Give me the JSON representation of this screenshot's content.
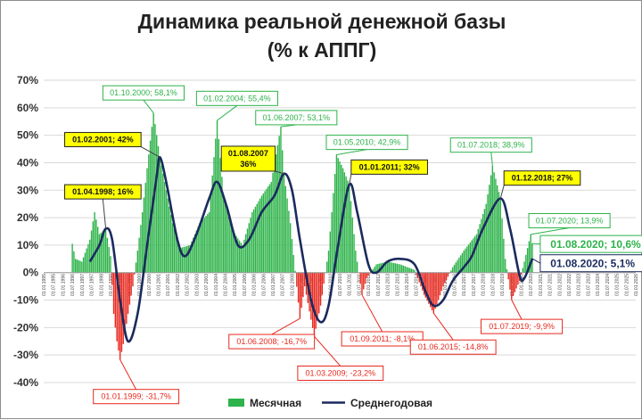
{
  "chart_data": {
    "type": "bar",
    "title": "Динамика реальной денежной базы",
    "subtitle": "(% к АППГ)",
    "xlabel": "",
    "ylabel": "",
    "ylim": [
      -40,
      70
    ],
    "yticks": [
      70,
      60,
      50,
      40,
      30,
      20,
      10,
      0,
      -10,
      -20,
      -30,
      -40
    ],
    "ytick_labels": [
      "70%",
      "60%",
      "50%",
      "40%",
      "30%",
      "20%",
      "10%",
      "0%",
      "-10%",
      "-20%",
      "-30%",
      "-40%"
    ],
    "x_start": "1995-01",
    "x_end": "2026-01",
    "xtick_labels": [
      "01.01.1995",
      "01.07.1995",
      "01.01.1996",
      "01.07.1996",
      "01.01.1997",
      "01.07.1997",
      "01.01.1998",
      "01.07.1998",
      "01.01.1999",
      "01.07.1999",
      "01.01.2000",
      "01.07.2000",
      "01.01.2001",
      "01.07.2001",
      "01.01.2002",
      "01.07.2002",
      "01.01.2003",
      "01.07.2003",
      "01.01.2004",
      "01.07.2004",
      "01.01.2005",
      "01.07.2005",
      "01.01.2006",
      "01.07.2006",
      "01.01.2007",
      "01.07.2007",
      "01.01.2008",
      "01.07.2008",
      "01.01.2009",
      "01.07.2009",
      "01.01.2010",
      "01.07.2010",
      "01.01.2011",
      "01.07.2011",
      "01.01.2012",
      "01.07.2012",
      "01.01.2013",
      "01.07.2013",
      "01.01.2014",
      "01.07.2014",
      "01.01.2015",
      "01.07.2015",
      "01.01.2016",
      "01.07.2016",
      "01.01.2017",
      "01.07.2017",
      "01.01.2018",
      "01.07.2018",
      "01.01.2019",
      "01.07.2019",
      "01.01.2020",
      "01.07.2020",
      "01.01.2021",
      "01.07.2021",
      "01.01.2022",
      "01.07.2022",
      "01.01.2023",
      "01.07.2023",
      "01.01.2024",
      "01.07.2024",
      "01.01.2025",
      "01.07.2025",
      "01.01.2026"
    ],
    "grid": true,
    "legend_position": "bottom",
    "series": [
      {
        "name": "Месячная",
        "type": "bar",
        "color": "#2db34a",
        "negative_color": "#e8281e",
        "keypoints": [
          [
            "1996-06",
            0
          ],
          [
            "1996-07",
            10.5
          ],
          [
            "1996-09",
            5
          ],
          [
            "1997-01",
            4
          ],
          [
            "1997-06",
            12
          ],
          [
            "1997-09",
            22
          ],
          [
            "1997-12",
            14
          ],
          [
            "1998-04",
            16
          ],
          [
            "1998-07",
            6
          ],
          [
            "1998-09",
            -15
          ],
          [
            "1998-11",
            -25
          ],
          [
            "1999-01",
            -31.7
          ],
          [
            "1999-03",
            -26
          ],
          [
            "1999-06",
            -15
          ],
          [
            "1999-09",
            -5
          ],
          [
            "1999-12",
            8
          ],
          [
            "2000-03",
            22
          ],
          [
            "2000-06",
            38
          ],
          [
            "2000-10",
            58.1
          ],
          [
            "2001-02",
            42
          ],
          [
            "2001-06",
            30
          ],
          [
            "2001-10",
            18
          ],
          [
            "2002-03",
            9
          ],
          [
            "2002-09",
            10
          ],
          [
            "2003-03",
            18
          ],
          [
            "2003-09",
            22
          ],
          [
            "2004-02",
            55.4
          ],
          [
            "2004-06",
            28
          ],
          [
            "2004-12",
            15
          ],
          [
            "2005-06",
            10
          ],
          [
            "2005-12",
            22
          ],
          [
            "2006-06",
            28
          ],
          [
            "2006-12",
            33
          ],
          [
            "2007-06",
            53.1
          ],
          [
            "2007-08",
            36
          ],
          [
            "2007-12",
            18
          ],
          [
            "2008-06",
            -16.7
          ],
          [
            "2008-09",
            -5
          ],
          [
            "2009-03",
            -23.2
          ],
          [
            "2009-07",
            -12
          ],
          [
            "2009-12",
            8
          ],
          [
            "2010-05",
            42.9
          ],
          [
            "2010-09",
            38
          ],
          [
            "2011-01",
            32
          ],
          [
            "2011-05",
            8
          ],
          [
            "2011-09",
            -8.1
          ],
          [
            "2011-12",
            -2
          ],
          [
            "2012-06",
            3
          ],
          [
            "2013-01",
            4
          ],
          [
            "2013-09",
            3
          ],
          [
            "2014-06",
            1
          ],
          [
            "2014-12",
            -8
          ],
          [
            "2015-06",
            -14.8
          ],
          [
            "2015-12",
            -5
          ],
          [
            "2016-06",
            2
          ],
          [
            "2017-01",
            8
          ],
          [
            "2017-09",
            14
          ],
          [
            "2018-03",
            25
          ],
          [
            "2018-07",
            38.9
          ],
          [
            "2018-12",
            27
          ],
          [
            "2019-03",
            5
          ],
          [
            "2019-07",
            -9.9
          ],
          [
            "2019-12",
            -3
          ],
          [
            "2020-03",
            4
          ],
          [
            "2020-07",
            13.9
          ],
          [
            "2020-08",
            10.6
          ]
        ]
      },
      {
        "name": "Среднегодовая",
        "type": "line",
        "color": "#1b2a5e",
        "keypoints": [
          [
            "1997-06",
            4
          ],
          [
            "1997-12",
            10
          ],
          [
            "1998-04",
            16
          ],
          [
            "1998-08",
            12
          ],
          [
            "1999-01",
            -10
          ],
          [
            "1999-06",
            -25
          ],
          [
            "1999-12",
            -15
          ],
          [
            "2000-06",
            10
          ],
          [
            "2000-12",
            35
          ],
          [
            "2001-02",
            42
          ],
          [
            "2001-06",
            33
          ],
          [
            "2002-01",
            12
          ],
          [
            "2002-06",
            6
          ],
          [
            "2003-01",
            14
          ],
          [
            "2003-09",
            27
          ],
          [
            "2004-02",
            33
          ],
          [
            "2004-08",
            24
          ],
          [
            "2005-03",
            10
          ],
          [
            "2005-10",
            12
          ],
          [
            "2006-06",
            22
          ],
          [
            "2007-02",
            28
          ],
          [
            "2007-08",
            36
          ],
          [
            "2008-01",
            30
          ],
          [
            "2008-06",
            12
          ],
          [
            "2009-01",
            -10
          ],
          [
            "2009-07",
            -18
          ],
          [
            "2009-12",
            -12
          ],
          [
            "2010-06",
            10
          ],
          [
            "2011-01",
            32
          ],
          [
            "2011-06",
            22
          ],
          [
            "2012-01",
            3
          ],
          [
            "2012-06",
            0
          ],
          [
            "2013-01",
            4
          ],
          [
            "2013-09",
            5
          ],
          [
            "2014-06",
            3
          ],
          [
            "2015-01",
            -7
          ],
          [
            "2015-06",
            -12
          ],
          [
            "2015-12",
            -10
          ],
          [
            "2016-06",
            -3
          ],
          [
            "2017-01",
            2
          ],
          [
            "2017-06",
            6
          ],
          [
            "2018-01",
            16
          ],
          [
            "2018-12",
            27
          ],
          [
            "2019-06",
            16
          ],
          [
            "2019-12",
            -1
          ],
          [
            "2020-03",
            -2
          ],
          [
            "2020-08",
            5.1
          ]
        ]
      }
    ],
    "annotations": [
      {
        "label": "01.10.2000; 58,1%",
        "date": "2000-10",
        "value": 58.1,
        "style": "green",
        "box": [
          1998.1,
          68
        ]
      },
      {
        "label": "01.02.2004; 55,4%",
        "date": "2004-02",
        "value": 55.4,
        "style": "green",
        "box": [
          2003.0,
          66
        ]
      },
      {
        "label": "01.06.2007; 53,1%",
        "date": "2007-06",
        "value": 53.1,
        "style": "green",
        "box": [
          2006.1,
          59
        ]
      },
      {
        "label": "01.05.2010; 42,9%",
        "date": "2010-05",
        "value": 42.9,
        "style": "green",
        "box": [
          2009.8,
          50
        ]
      },
      {
        "label": "01.07.2018; 38,9%",
        "date": "2018-07",
        "value": 38.9,
        "style": "green",
        "box": [
          2016.3,
          49
        ]
      },
      {
        "label": "01.07.2020; 13,9%",
        "date": "2020-07",
        "value": 13.9,
        "style": "green",
        "box": [
          2020.4,
          21.5
        ]
      },
      {
        "label": "01.08.2020; 10,6%",
        "date": "2020-08",
        "value": 10.6,
        "style": "green-big",
        "box": [
          2021.0,
          13.5
        ]
      },
      {
        "label": "01.02.2001; 42%",
        "date": "2001-02",
        "value": 42,
        "style": "yellow",
        "box": [
          1996.1,
          51
        ]
      },
      {
        "label": "01.04.1998; 16%",
        "date": "1998-04",
        "value": 16,
        "style": "yellow",
        "box": [
          1996.1,
          32
        ]
      },
      {
        "label": "01.08.2007",
        "label2": "36%",
        "date": "2007-08",
        "value": 36,
        "style": "yellow",
        "box": [
          2004.3,
          46
        ]
      },
      {
        "label": "01.01.2011; 32%",
        "date": "2011-01",
        "value": 32,
        "style": "yellow",
        "box": [
          2011.1,
          41
        ]
      },
      {
        "label": "01.12.2018; 27%",
        "date": "2018-12",
        "value": 27,
        "style": "yellow",
        "box": [
          2019.1,
          37
        ]
      },
      {
        "label": "01.08.2020; 5,1%",
        "date": "2020-08",
        "value": 5.1,
        "style": "navy-big",
        "box": [
          2021.0,
          6.5
        ]
      },
      {
        "label": "01.01.1999; -31,7%",
        "date": "1999-01",
        "value": -31.7,
        "style": "red",
        "box": [
          1997.6,
          -42.5
        ]
      },
      {
        "label": "01.06.2008; -16,7%",
        "date": "2008-06",
        "value": -16.7,
        "style": "red",
        "box": [
          2004.7,
          -22.5
        ]
      },
      {
        "label": "01.03.2009; -23,2%",
        "date": "2009-03",
        "value": -23.2,
        "style": "red",
        "box": [
          2008.3,
          -34
        ]
      },
      {
        "label": "01.09.2011; -8,1%",
        "date": "2011-09",
        "value": -8.1,
        "style": "red",
        "box": [
          2010.6,
          -21.5
        ]
      },
      {
        "label": "01.06.2015; -14,8%",
        "date": "2015-06",
        "value": -14.8,
        "style": "red",
        "box": [
          2014.2,
          -24.5
        ]
      },
      {
        "label": "01.07.2019; -9,9%",
        "date": "2019-07",
        "value": -9.9,
        "style": "red",
        "box": [
          2017.9,
          -17
        ]
      }
    ]
  }
}
